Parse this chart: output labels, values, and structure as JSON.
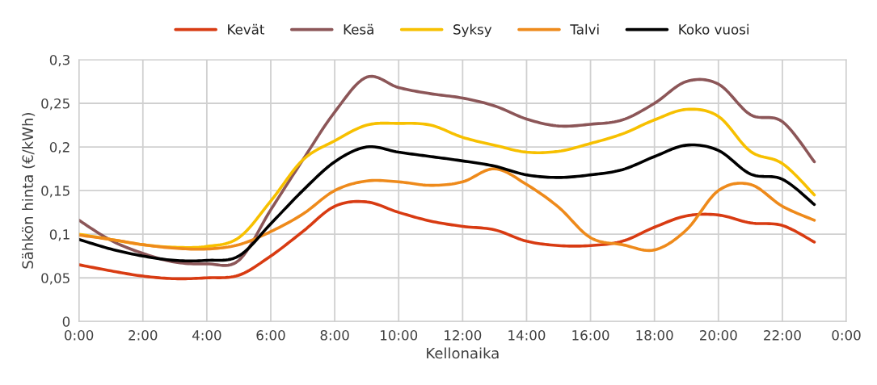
{
  "chart_data": {
    "type": "line",
    "xlabel": "Kellonaika",
    "ylabel": "Sähkön hinta (€/kWh)",
    "x": [
      0,
      1,
      2,
      3,
      4,
      5,
      6,
      7,
      8,
      9,
      10,
      11,
      12,
      13,
      14,
      15,
      16,
      17,
      18,
      19,
      20,
      21,
      22,
      23
    ],
    "series": [
      {
        "name": "Kevät",
        "color": "#d83b12",
        "values": [
          0.065,
          0.058,
          0.052,
          0.049,
          0.05,
          0.053,
          0.075,
          0.103,
          0.132,
          0.137,
          0.125,
          0.115,
          0.109,
          0.105,
          0.092,
          0.087,
          0.087,
          0.092,
          0.108,
          0.121,
          0.122,
          0.113,
          0.11,
          0.091
        ]
      },
      {
        "name": "Kesä",
        "color": "#8c5658",
        "values": [
          0.116,
          0.093,
          0.078,
          0.068,
          0.066,
          0.07,
          0.128,
          0.185,
          0.24,
          0.28,
          0.268,
          0.261,
          0.256,
          0.247,
          0.232,
          0.224,
          0.226,
          0.231,
          0.25,
          0.275,
          0.272,
          0.237,
          0.229,
          0.183
        ]
      },
      {
        "name": "Syksy",
        "color": "#f7c000",
        "values": [
          0.1,
          0.094,
          0.088,
          0.085,
          0.086,
          0.096,
          0.138,
          0.185,
          0.207,
          0.225,
          0.227,
          0.225,
          0.211,
          0.202,
          0.194,
          0.195,
          0.204,
          0.215,
          0.231,
          0.243,
          0.235,
          0.195,
          0.181,
          0.145
        ]
      },
      {
        "name": "Talvi",
        "color": "#ee8a1b",
        "values": [
          0.099,
          0.094,
          0.088,
          0.084,
          0.083,
          0.088,
          0.103,
          0.123,
          0.15,
          0.161,
          0.16,
          0.156,
          0.16,
          0.175,
          0.157,
          0.131,
          0.096,
          0.088,
          0.082,
          0.105,
          0.15,
          0.157,
          0.132,
          0.116
        ]
      },
      {
        "name": "Koko vuosi",
        "color": "#000000",
        "values": [
          0.094,
          0.083,
          0.075,
          0.07,
          0.07,
          0.075,
          0.112,
          0.15,
          0.183,
          0.2,
          0.194,
          0.189,
          0.184,
          0.178,
          0.168,
          0.165,
          0.168,
          0.174,
          0.189,
          0.202,
          0.196,
          0.169,
          0.163,
          0.134
        ]
      }
    ],
    "xlim": [
      0,
      24
    ],
    "xticks": [
      {
        "value": 0,
        "label": "0:00"
      },
      {
        "value": 2,
        "label": "2:00"
      },
      {
        "value": 4,
        "label": "4:00"
      },
      {
        "value": 6,
        "label": "6:00"
      },
      {
        "value": 8,
        "label": "8:00"
      },
      {
        "value": 10,
        "label": "10:00"
      },
      {
        "value": 12,
        "label": "12:00"
      },
      {
        "value": 14,
        "label": "14:00"
      },
      {
        "value": 16,
        "label": "16:00"
      },
      {
        "value": 18,
        "label": "18:00"
      },
      {
        "value": 20,
        "label": "20:00"
      },
      {
        "value": 22,
        "label": "22:00"
      },
      {
        "value": 24,
        "label": "0:00"
      }
    ],
    "ylim": [
      0,
      0.3
    ],
    "yticks": [
      0,
      {
        "value": 0.05,
        "label": "0,05"
      },
      {
        "value": 0.1,
        "label": "0,1"
      },
      {
        "value": 0.15,
        "label": "0,15"
      },
      {
        "value": 0.2,
        "label": "0,2"
      },
      {
        "value": 0.25,
        "label": "0,25"
      },
      {
        "value": 0.3,
        "label": "0,3"
      }
    ],
    "grid": true,
    "legend": "top",
    "marker": "none",
    "line_style": "solid"
  }
}
